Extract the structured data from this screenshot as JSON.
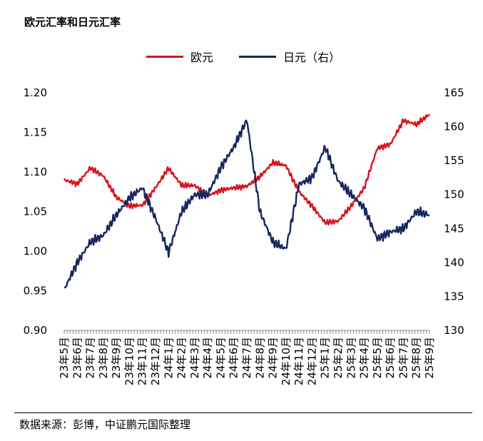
{
  "title": "欧元汇率和日元汇率",
  "source": "数据来源：彭博，中证鹏元国际整理",
  "colors": {
    "eur": "#d7141e",
    "jpy": "#16285f"
  },
  "chart_data": {
    "type": "line",
    "title": "欧元汇率和日元汇率",
    "legend_placement": "top",
    "grid": false,
    "x": [
      "23年5月",
      "23年6月",
      "23年7月",
      "23年8月",
      "23年9月",
      "23年10月",
      "23年11月",
      "23年12月",
      "24年1月",
      "24年2月",
      "24年3月",
      "24年4月",
      "24年5月",
      "24年6月",
      "24年7月",
      "24年8月",
      "24年9月",
      "24年10月",
      "24年11月",
      "24年12月",
      "25年1月",
      "25年2月",
      "25年3月",
      "25年4月",
      "25年5月",
      "25年6月",
      "25年7月",
      "25年8月",
      "25年9月"
    ],
    "y_left": {
      "ylim": [
        0.9,
        1.2
      ],
      "ticks": [
        "0.90",
        "0.95",
        "1.00",
        "1.05",
        "1.10",
        "1.15",
        "1.20"
      ]
    },
    "y_right": {
      "ylim": [
        130,
        165
      ],
      "ticks": [
        "130",
        "135",
        "140",
        "145",
        "150",
        "155",
        "160",
        "165"
      ]
    },
    "series": [
      {
        "name": "欧元",
        "axis": "left",
        "values": [
          1.09,
          1.085,
          1.105,
          1.095,
          1.068,
          1.057,
          1.058,
          1.08,
          1.105,
          1.083,
          1.083,
          1.07,
          1.077,
          1.08,
          1.082,
          1.094,
          1.112,
          1.108,
          1.075,
          1.057,
          1.036,
          1.038,
          1.057,
          1.08,
          1.13,
          1.135,
          1.165,
          1.16,
          1.173
        ]
      },
      {
        "name": "日元（右）",
        "axis": "right",
        "values": [
          136.0,
          140.0,
          143.0,
          144.0,
          147.0,
          149.5,
          151.0,
          146.5,
          141.5,
          147.5,
          150.0,
          150.0,
          154.0,
          157.0,
          161.0,
          147.5,
          143.0,
          142.0,
          151.5,
          152.5,
          157.0,
          152.0,
          150.0,
          148.0,
          143.5,
          144.5,
          145.0,
          147.5,
          147.0
        ]
      }
    ]
  }
}
